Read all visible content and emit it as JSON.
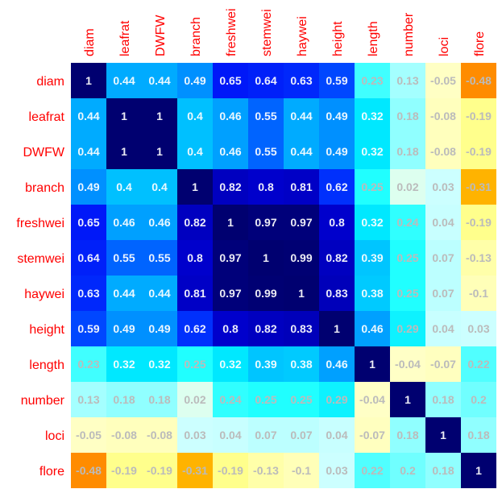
{
  "chart_data": {
    "type": "heatmap",
    "title": "",
    "variables": [
      "diam",
      "leafrat",
      "DWFW",
      "branch",
      "freshwei",
      "stemwei",
      "haywei",
      "height",
      "length",
      "number",
      "loci",
      "flore"
    ],
    "matrix": [
      [
        1,
        0.44,
        0.44,
        0.49,
        0.65,
        0.64,
        0.63,
        0.59,
        0.23,
        0.13,
        -0.05,
        -0.48
      ],
      [
        0.44,
        1,
        1,
        0.4,
        0.46,
        0.55,
        0.44,
        0.49,
        0.32,
        0.18,
        -0.08,
        -0.19
      ],
      [
        0.44,
        1,
        1,
        0.4,
        0.46,
        0.55,
        0.44,
        0.49,
        0.32,
        0.18,
        -0.08,
        -0.19
      ],
      [
        0.49,
        0.4,
        0.4,
        1,
        0.82,
        0.8,
        0.81,
        0.62,
        0.25,
        0.02,
        0.03,
        -0.31
      ],
      [
        0.65,
        0.46,
        0.46,
        0.82,
        1,
        0.97,
        0.97,
        0.8,
        0.32,
        0.24,
        0.04,
        -0.19
      ],
      [
        0.64,
        0.55,
        0.55,
        0.8,
        0.97,
        1,
        0.99,
        0.82,
        0.39,
        0.25,
        0.07,
        -0.13
      ],
      [
        0.63,
        0.44,
        0.44,
        0.81,
        0.97,
        0.99,
        1,
        0.83,
        0.38,
        0.25,
        0.07,
        -0.1
      ],
      [
        0.59,
        0.49,
        0.49,
        0.62,
        0.8,
        0.82,
        0.83,
        1,
        0.46,
        0.29,
        0.04,
        0.03
      ],
      [
        0.23,
        0.32,
        0.32,
        0.25,
        0.32,
        0.39,
        0.38,
        0.46,
        1,
        -0.04,
        -0.07,
        0.22
      ],
      [
        0.13,
        0.18,
        0.18,
        0.02,
        0.24,
        0.25,
        0.25,
        0.29,
        -0.04,
        1,
        0.18,
        0.2
      ],
      [
        -0.05,
        -0.08,
        -0.08,
        0.03,
        0.04,
        0.07,
        0.07,
        0.04,
        -0.07,
        0.18,
        1,
        0.18
      ],
      [
        -0.48,
        -0.19,
        -0.19,
        -0.31,
        -0.19,
        -0.13,
        -0.1,
        0.03,
        0.22,
        0.2,
        0.18,
        1
      ]
    ],
    "color_scale": {
      "stops": [
        {
          "value": -0.48,
          "color": "#ff8c00"
        },
        {
          "value": -0.31,
          "color": "#ffb300"
        },
        {
          "value": -0.19,
          "color": "#ffff8c"
        },
        {
          "value": -0.1,
          "color": "#ffffb8"
        },
        {
          "value": 0.0,
          "color": "#ffffd0"
        },
        {
          "value": 0.03,
          "color": "#ccffff"
        },
        {
          "value": 0.18,
          "color": "#90ffff"
        },
        {
          "value": 0.25,
          "color": "#20ffff"
        },
        {
          "value": 0.32,
          "color": "#00e8ff"
        },
        {
          "value": 0.4,
          "color": "#00c0ff"
        },
        {
          "value": 0.49,
          "color": "#0090ff"
        },
        {
          "value": 0.6,
          "color": "#0040ff"
        },
        {
          "value": 0.65,
          "color": "#0018f8"
        },
        {
          "value": 0.8,
          "color": "#0000cc"
        },
        {
          "value": 0.9,
          "color": "#000090"
        },
        {
          "value": 1.0,
          "color": "#000070"
        }
      ]
    },
    "label_color": "#ff0000",
    "value_text_color_dark_cells": "#ffffff",
    "value_text_color_light_cells": "#bbbbbb"
  }
}
